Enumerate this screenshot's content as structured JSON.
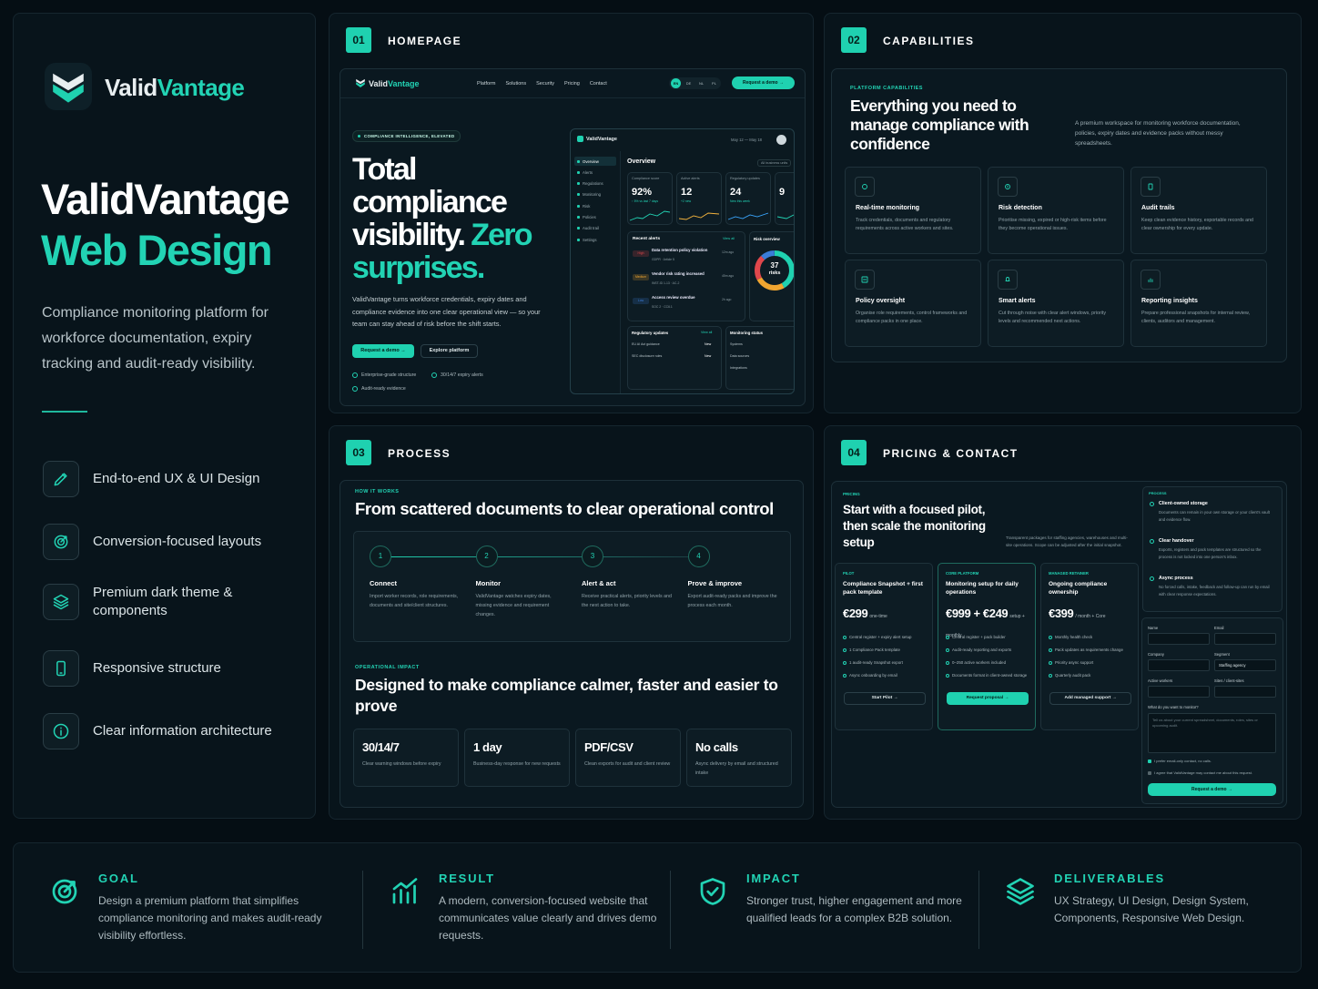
{
  "brand": {
    "name_a": "Valid",
    "name_b": "Vantage"
  },
  "intro": {
    "title_line1": "ValidVantage",
    "title_line2": "Web Design",
    "description": "Compliance monitoring platform for workforce documentation, expiry tracking and audit-ready visibility.",
    "features": [
      "End-to-end UX & UI Design",
      "Conversion-focused layouts",
      "Premium dark theme & components",
      "Responsive structure",
      "Clear information architecture"
    ]
  },
  "panels": [
    {
      "number": "01",
      "title": "HOMEPAGE"
    },
    {
      "number": "02",
      "title": "CAPABILITIES"
    },
    {
      "number": "03",
      "title": "PROCESS"
    },
    {
      "number": "04",
      "title": "PRICING & CONTACT"
    }
  ],
  "homepage": {
    "nav": {
      "logo_a": "Valid",
      "logo_b": "Vantage",
      "links": [
        "Platform",
        "Solutions",
        "Security",
        "Pricing",
        "Contact"
      ],
      "languages": [
        "EN",
        "DE",
        "NL",
        "PL"
      ],
      "cta": "Request a demo →"
    },
    "badge": "COMPLIANCE INTELLIGENCE, ELEVATED",
    "headline": "Total compliance visibility.",
    "headline_accent": "Zero surprises.",
    "body": "ValidVantage turns workforce credentials, expiry dates and compliance evidence into one clear operational view — so your team can stay ahead of risk before the shift starts.",
    "primary_button": "Request a demo →",
    "secondary_button": "Explore platform",
    "checks": [
      "Enterprise-grade structure",
      "30/14/7 expiry alerts",
      "Audit-ready evidence"
    ],
    "dashboard": {
      "logo": "ValidVantage",
      "date_range": "May 12 — May 18",
      "sidebar": [
        "Overview",
        "Alerts",
        "Regulations",
        "Monitoring",
        "Risk",
        "Policies",
        "Audit trail",
        "Settings"
      ],
      "heading": "Overview",
      "filter": "All business units",
      "kpis": [
        {
          "label": "Compliance score",
          "value": "92%",
          "note": "↑ 5% vs last 7 days"
        },
        {
          "label": "Active alerts",
          "value": "12",
          "note": "+2 new"
        },
        {
          "label": "Regulatory updates",
          "value": "24",
          "note": "New this week"
        },
        {
          "value": "9"
        }
      ],
      "alerts": {
        "title": "Recent alerts",
        "link": "View all",
        "items": [
          {
            "tag": "High",
            "title": "Data retention policy violation",
            "sub": "GDPR · Article 5",
            "time": "12m ago"
          },
          {
            "tag": "Medium",
            "title": "Vendor risk rating increased",
            "sub": "INST-ID 1-13 · AC-2",
            "time": "45m ago"
          },
          {
            "tag": "Low",
            "title": "Access review overdue",
            "sub": "SOC 2 · CC6.1",
            "time": "2h ago"
          }
        ]
      },
      "risk": {
        "title": "Risk overview",
        "count": "37",
        "unit": "risks"
      },
      "updates": {
        "title": "Regulatory updates",
        "link": "View all",
        "items": [
          {
            "name": "EU AI Act guidance",
            "tag": "New"
          },
          {
            "name": "SEC disclosure rules",
            "tag": "New"
          }
        ]
      },
      "monitoring": {
        "title": "Monitoring status",
        "items": [
          "Systems",
          "Data sources",
          "Integrations"
        ]
      }
    }
  },
  "capabilities": {
    "eyebrow": "PLATFORM CAPABILITIES",
    "heading": "Everything you need to manage compliance with confidence",
    "description": "A premium workspace for monitoring workforce documentation, policies, expiry dates and evidence packs without messy spreadsheets.",
    "cards": [
      {
        "title": "Real-time monitoring",
        "text": "Track credentials, documents and regulatory requirements across active workers and sites."
      },
      {
        "title": "Risk detection",
        "text": "Prioritise missing, expired or high-risk items before they become operational issues."
      },
      {
        "title": "Audit trails",
        "text": "Keep clean evidence history, exportable records and clear ownership for every update."
      },
      {
        "title": "Policy oversight",
        "text": "Organise role requirements, control frameworks and compliance packs in one place."
      },
      {
        "title": "Smart alerts",
        "text": "Cut through noise with clear alert windows, priority levels and recommended next actions."
      },
      {
        "title": "Reporting insights",
        "text": "Prepare professional snapshots for internal review, clients, auditors and management."
      }
    ]
  },
  "process": {
    "eyebrow": "HOW IT WORKS",
    "heading": "From scattered documents to clear operational control",
    "steps": [
      {
        "number": "1",
        "title": "Connect",
        "text": "Import worker records, role requirements, documents and site/client structures."
      },
      {
        "number": "2",
        "title": "Monitor",
        "text": "ValidVantage watches expiry dates, missing evidence and requirement changes."
      },
      {
        "number": "3",
        "title": "Alert & act",
        "text": "Receive practical alerts, priority levels and the next action to take."
      },
      {
        "number": "4",
        "title": "Prove & improve",
        "text": "Export audit-ready packs and improve the process each month."
      }
    ],
    "impact_eyebrow": "OPERATIONAL IMPACT",
    "impact_heading": "Designed to make compliance calmer, faster and easier to prove",
    "stats": [
      {
        "value": "30/14/7",
        "text": "Clear warning windows before expiry"
      },
      {
        "value": "1 day",
        "text": "Business-day response for new requests"
      },
      {
        "value": "PDF/CSV",
        "text": "Clean exports for audit and client review"
      },
      {
        "value": "No calls",
        "text": "Async delivery by email and structured intake"
      }
    ]
  },
  "pricing": {
    "eyebrow": "PRICING",
    "heading": "Start with a focused pilot, then scale the monitoring setup",
    "description": "Transparent packages for staffing agencies, warehouses and multi-site operations. Scope can be adjusted after the initial snapshot.",
    "plans": [
      {
        "tier": "PILOT",
        "name": "Compliance Snapshot + first pack template",
        "price": "€299",
        "period": "one-time",
        "features": [
          "Central register + expiry alert setup",
          "1 Compliance Pack template",
          "1 audit-ready Snapshot export",
          "Async onboarding by email"
        ],
        "button": "Start Pilot →"
      },
      {
        "tier": "CORE PLATFORM",
        "name": "Monitoring setup for daily operations",
        "price": "€999 + €249",
        "period": "setup + monthly",
        "features": [
          "Central register + pack builder",
          "Audit-ready reporting and exports",
          "0–250 active workers included",
          "Documents format in client-owned storage"
        ],
        "button": "Request proposal →"
      },
      {
        "tier": "MANAGED RETAINER",
        "name": "Ongoing compliance ownership",
        "price": "€399",
        "period": "/ month + Core",
        "features": [
          "Monthly health check",
          "Pack updates as requirements change",
          "Priority async support",
          "Quarterly audit pack"
        ],
        "button": "Add managed support →"
      }
    ],
    "side_eyebrow": "PROCESS",
    "side_items": [
      {
        "title": "Client-owned storage",
        "text": "Documents can remain in your own storage or your client's vault and evidence flow."
      },
      {
        "title": "Clear handover",
        "text": "Exports, registers and pack templates are structured so the process is not locked into one person's inbox."
      },
      {
        "title": "Async process",
        "text": "No forced calls, intake, feedback and follow-up can run by email with clear response expectations."
      }
    ],
    "form": {
      "fields": [
        "Name",
        "Email",
        "Company",
        "Segment",
        "Active workers",
        "Sites / client-sites"
      ],
      "segment_value": "Staffing agency",
      "message_label": "What do you want to monitor?",
      "message_placeholder": "Tell us about your current spreadsheet, documents, roles, sites or upcoming audit.",
      "checkboxes": [
        "I prefer email-only contact, no calls.",
        "I agree that ValidVantage may contact me about this request."
      ],
      "button": "Request a demo →"
    }
  },
  "summary": [
    {
      "label": "GOAL",
      "text": "Design a premium platform that simplifies compliance monitoring and makes audit-ready visibility effortless."
    },
    {
      "label": "RESULT",
      "text": "A modern, conversion-focused website that communicates value clearly and drives demo requests."
    },
    {
      "label": "IMPACT",
      "text": "Stronger trust, higher engagement and more qualified leads for a complex B2B solution."
    },
    {
      "label": "DELIVERABLES",
      "text": "UX Strategy, UI Design, Design System, Components, Responsive Web Design."
    }
  ]
}
